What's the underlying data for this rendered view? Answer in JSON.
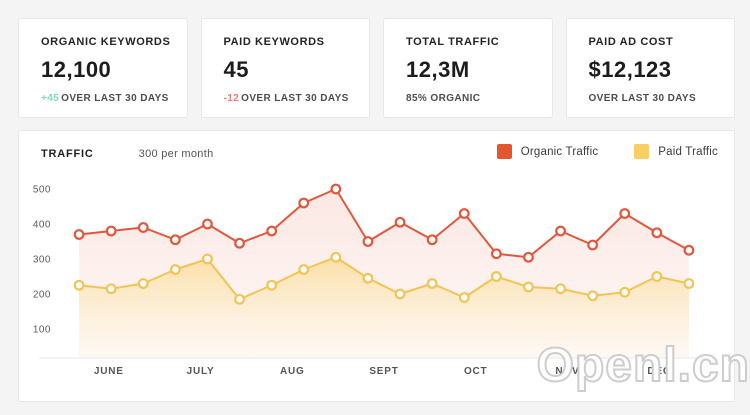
{
  "cards": [
    {
      "label": "ORGANIC KEYWORDS",
      "value": "12,100",
      "delta": "+45",
      "delta_color": "#7edcc1",
      "sub": "OVER LAST 30 DAYS"
    },
    {
      "label": "PAID KEYWORDS",
      "value": "45",
      "delta": "-12",
      "delta_color": "#f3786a",
      "sub": "OVER LAST 30 DAYS"
    },
    {
      "label": "TOTAL TRAFFIC",
      "value": "12,3M",
      "delta": "",
      "delta_color": "",
      "sub": "85% ORGANIC"
    },
    {
      "label": "PAID AD COST",
      "value": "$12,123",
      "delta": "",
      "delta_color": "",
      "sub": "OVER LAST 30 DAYS"
    }
  ],
  "chart": {
    "title": "TRAFFIC",
    "subtitle": "300 per month",
    "legend": [
      {
        "label": "Organic Traffic",
        "color": "#e2572f"
      },
      {
        "label": "Paid Traffic",
        "color": "#f8cf63"
      }
    ]
  },
  "chart_data": {
    "type": "line",
    "title": "TRAFFIC",
    "subtitle": "300 per month",
    "categories": [
      "JUNE",
      "JULY",
      "AUG",
      "SEPT",
      "OCT",
      "NOV",
      "DEC"
    ],
    "points_per_month": 3,
    "y_ticks": [
      500,
      400,
      300,
      200,
      100
    ],
    "ylim": [
      0,
      550
    ],
    "grid": false,
    "legend_position": "top-right",
    "series": [
      {
        "name": "Organic Traffic",
        "color": "#e2573c",
        "values": [
          370,
          380,
          390,
          355,
          400,
          345,
          380,
          460,
          500,
          350,
          405,
          355,
          430,
          315,
          305,
          380,
          340,
          430,
          375,
          325
        ]
      },
      {
        "name": "Paid Traffic",
        "color": "#f2c455",
        "values": [
          225,
          215,
          230,
          270,
          300,
          185,
          225,
          270,
          305,
          245,
          200,
          230,
          190,
          250,
          220,
          215,
          195,
          205,
          250,
          230
        ]
      }
    ]
  },
  "watermark": "Openl.cn"
}
